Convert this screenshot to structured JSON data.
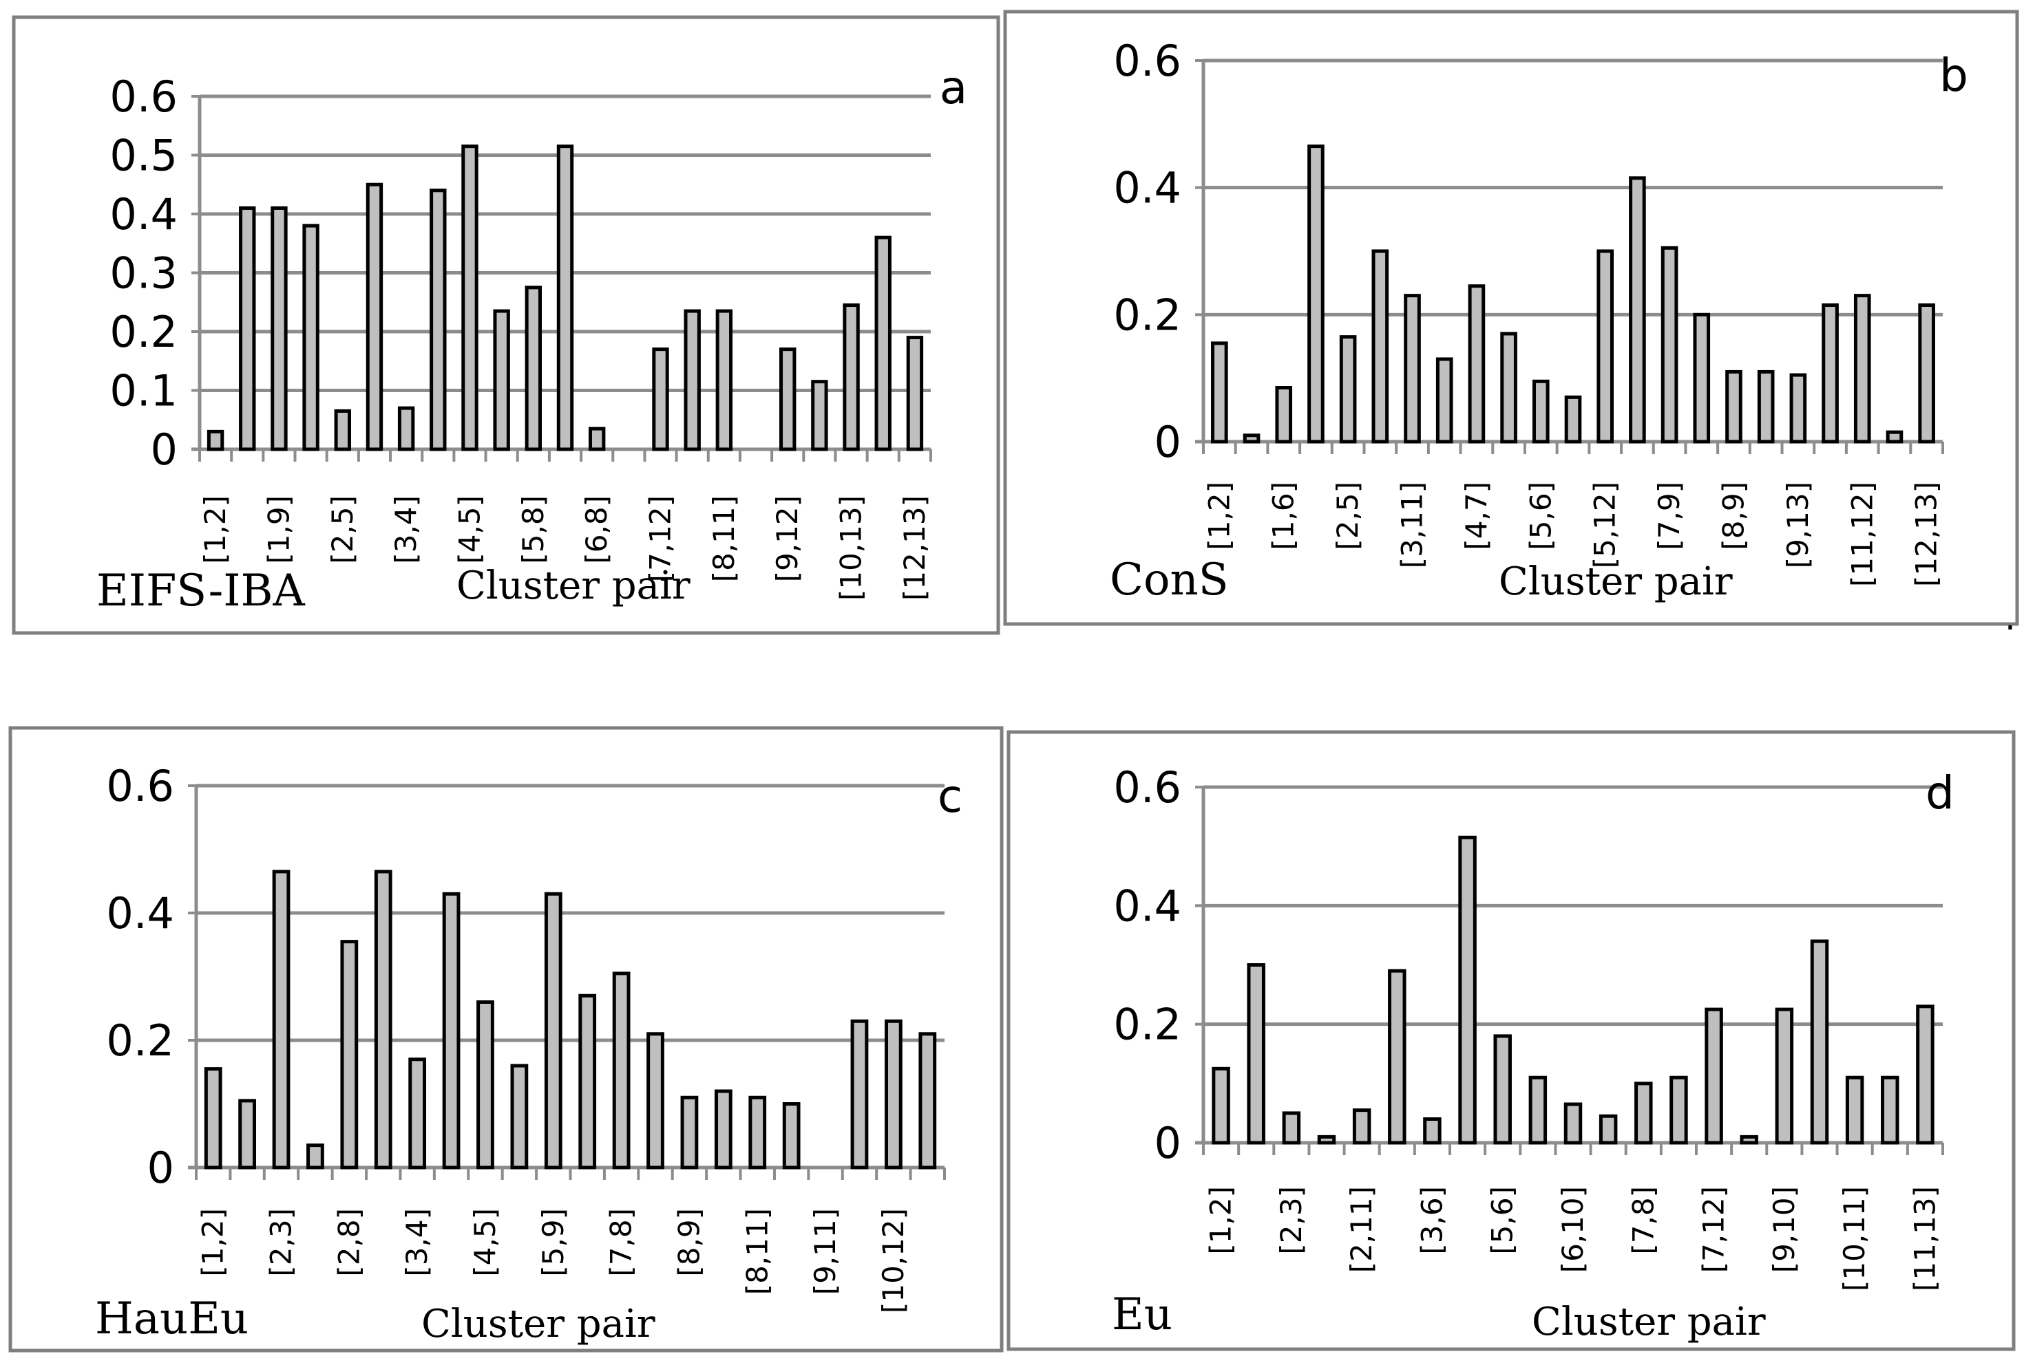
{
  "chart_data": [
    {
      "type": "bar",
      "panel": "a",
      "method": "EIFS-IBA",
      "xlabel": "Cluster pair",
      "ylim": [
        0,
        0.6
      ],
      "yticks": [
        "0",
        "0.1",
        "0.2",
        "0.3",
        "0.4",
        "0.5",
        "0.6"
      ],
      "xticks": [
        "[1,2]",
        "[1,9]",
        "[2,5]",
        "[3,4]",
        "[4,5]",
        "[5,8]",
        "[6,8]",
        "[7,12]",
        "[8,11]",
        "[9,12]",
        "[10,13]",
        "[12,13]"
      ],
      "values": [
        0.03,
        0.41,
        0.41,
        0.38,
        0.065,
        0.45,
        0.07,
        0.44,
        0.515,
        0.235,
        0.275,
        0.515,
        0.035,
        0,
        0.17,
        0.235,
        0.235,
        0,
        0.17,
        0.115,
        0.245,
        0.36,
        0.19
      ]
    },
    {
      "type": "bar",
      "panel": "b",
      "method": "ConS",
      "xlabel": "Cluster pair",
      "ylim": [
        0,
        0.6
      ],
      "yticks": [
        "0",
        "0.2",
        "0.4",
        "0.6"
      ],
      "xticks": [
        "[1,2]",
        "[1,6]",
        "[2,5]",
        "[3,11]",
        "[4,7]",
        "[5,6]",
        "[5,12]",
        "[7,9]",
        "[8,9]",
        "[9,13]",
        "[11,12]",
        "[12,13]"
      ],
      "values": [
        0.155,
        0.01,
        0.085,
        0.465,
        0.165,
        0.3,
        0.23,
        0.13,
        0.245,
        0.17,
        0.095,
        0.07,
        0.3,
        0.415,
        0.305,
        0.2,
        0.11,
        0.11,
        0.105,
        0.215,
        0.23,
        0.015,
        0.215
      ]
    },
    {
      "type": "bar",
      "panel": "c",
      "method": "HauEu",
      "xlabel": "Cluster pair",
      "ylim": [
        0,
        0.6
      ],
      "yticks": [
        "0",
        "0.2",
        "0.4",
        "0.6"
      ],
      "xticks": [
        "[1,2]",
        "[2,3]",
        "[2,8]",
        "[3,4]",
        "[4,5]",
        "[5,9]",
        "[7,8]",
        "[8,9]",
        "[8,11]",
        "[9,11]",
        "[10,12]"
      ],
      "values": [
        0.155,
        0.105,
        0.465,
        0.035,
        0.355,
        0.465,
        0.17,
        0.43,
        0.26,
        0.16,
        0.43,
        0.27,
        0.305,
        0.21,
        0.11,
        0.12,
        0.11,
        0.1,
        0,
        0.23,
        0.23,
        0.21
      ]
    },
    {
      "type": "bar",
      "panel": "d",
      "method": "Eu",
      "xlabel": "Cluster pair",
      "ylim": [
        0,
        0.6
      ],
      "yticks": [
        "0",
        "0.2",
        "0.4",
        "0.6"
      ],
      "xticks": [
        "[1,2]",
        "[2,3]",
        "[2,11]",
        "[3,6]",
        "[5,6]",
        "[6,10]",
        "[7,8]",
        "[7,12]",
        "[9,10]",
        "[10,11]",
        "[11,13]"
      ],
      "values": [
        0.125,
        0.3,
        0.05,
        0.01,
        0.055,
        0.29,
        0.04,
        0.515,
        0.18,
        0.11,
        0.065,
        0.045,
        0.1,
        0.11,
        0.225,
        0.01,
        0.225,
        0.34,
        0.11,
        0.11,
        0.23
      ]
    }
  ],
  "trailing_mark": "."
}
